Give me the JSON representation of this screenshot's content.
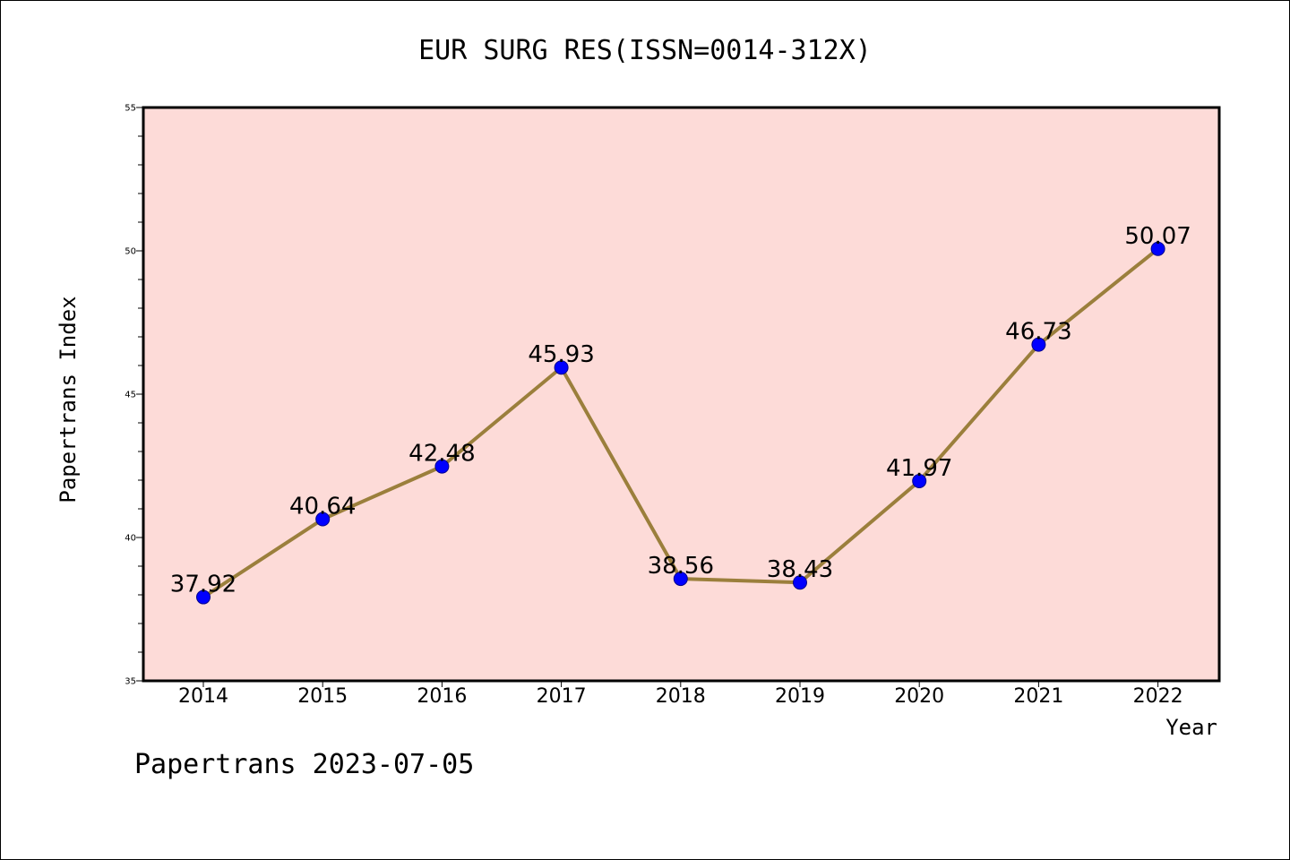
{
  "chart_data": {
    "type": "line",
    "title": "EUR SURG RES(ISSN=0014-312X)",
    "xlabel": "Year",
    "ylabel": "Papertrans Index",
    "categories": [
      "2014",
      "2015",
      "2016",
      "2017",
      "2018",
      "2019",
      "2020",
      "2021",
      "2022"
    ],
    "series": [
      {
        "values": [
          37.92,
          40.64,
          42.48,
          45.93,
          38.56,
          38.43,
          41.97,
          46.73,
          50.07
        ],
        "labels": [
          "37.92",
          "40.64",
          "42.48",
          "45.93",
          "38.56",
          "38.43",
          "41.97",
          "46.73",
          "50.07"
        ]
      }
    ],
    "ylim": [
      35,
      55
    ],
    "yticks": [
      "35",
      "40",
      "45",
      "50",
      "55"
    ],
    "grid": false,
    "colors": {
      "plot_background": "#fddbd8",
      "line": "#9b7f3c",
      "marker": "#0000ff"
    }
  },
  "footer": "Papertrans 2023-07-05"
}
